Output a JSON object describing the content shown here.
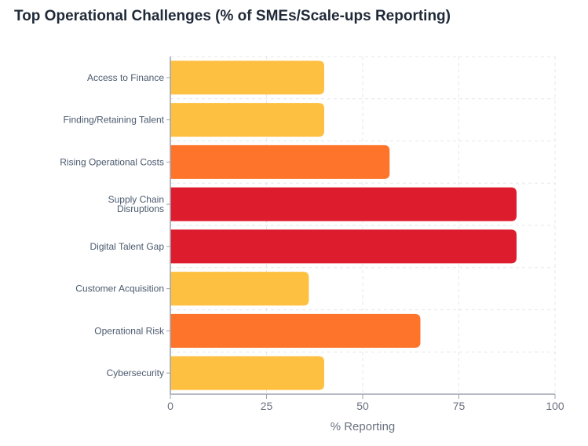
{
  "chart_data": {
    "type": "bar",
    "orientation": "horizontal",
    "title": "Top Operational Challenges (% of SMEs/Scale-ups Reporting)",
    "xlabel": "% Reporting",
    "ylabel": "",
    "xlim": [
      0,
      100
    ],
    "x_ticks": [
      "0",
      "25",
      "50",
      "75",
      "100"
    ],
    "categories": [
      [
        "Access to Finance"
      ],
      [
        "Finding/Retaining Talent"
      ],
      [
        "Rising Operational Costs"
      ],
      [
        "Supply Chain",
        "Disruptions"
      ],
      [
        "Digital Talent Gap"
      ],
      [
        "Customer Acquisition"
      ],
      [
        "Operational Risk"
      ],
      [
        "Cybersecurity"
      ]
    ],
    "values": [
      40,
      40,
      57,
      90,
      90,
      36,
      65,
      40
    ],
    "bar_colors": [
      "#fdc040",
      "#fdc040",
      "#fd742a",
      "#dd1c2d",
      "#dd1c2d",
      "#fdc040",
      "#fd742a",
      "#fdc040"
    ],
    "grid": true,
    "legend": "none"
  }
}
